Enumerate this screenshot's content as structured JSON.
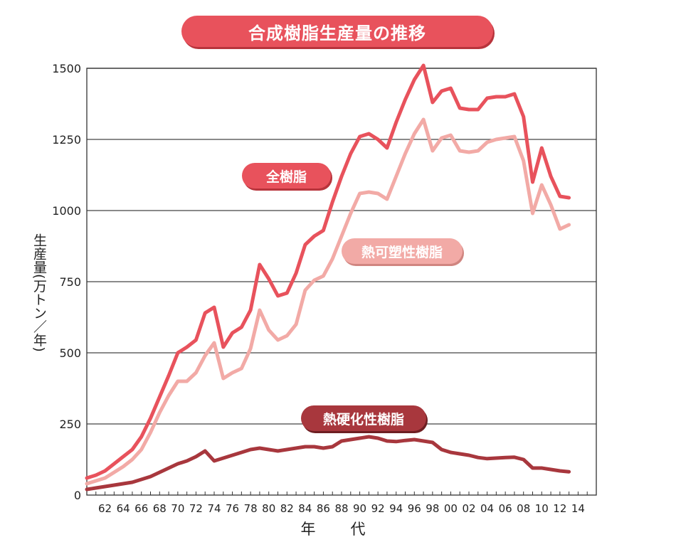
{
  "chart_data": {
    "type": "line",
    "title": "合成樹脂生産量の推移",
    "xlabel": "年　代",
    "ylabel": "生産量(万トン／年)",
    "ylim": [
      0,
      1500
    ],
    "xlim": [
      1960,
      2016
    ],
    "yticks": [
      0,
      250,
      500,
      750,
      1000,
      1250,
      1500
    ],
    "xticks": [
      {
        "year": 1962,
        "label": "62"
      },
      {
        "year": 1964,
        "label": "64"
      },
      {
        "year": 1966,
        "label": "66"
      },
      {
        "year": 1968,
        "label": "68"
      },
      {
        "year": 1970,
        "label": "70"
      },
      {
        "year": 1972,
        "label": "72"
      },
      {
        "year": 1974,
        "label": "74"
      },
      {
        "year": 1976,
        "label": "76"
      },
      {
        "year": 1978,
        "label": "78"
      },
      {
        "year": 1980,
        "label": "80"
      },
      {
        "year": 1982,
        "label": "82"
      },
      {
        "year": 1984,
        "label": "84"
      },
      {
        "year": 1986,
        "label": "86"
      },
      {
        "year": 1988,
        "label": "88"
      },
      {
        "year": 1990,
        "label": "90"
      },
      {
        "year": 1992,
        "label": "92"
      },
      {
        "year": 1994,
        "label": "94"
      },
      {
        "year": 1996,
        "label": "96"
      },
      {
        "year": 1998,
        "label": "98"
      },
      {
        "year": 2000,
        "label": "00"
      },
      {
        "year": 2002,
        "label": "02"
      },
      {
        "year": 2004,
        "label": "04"
      },
      {
        "year": 2006,
        "label": "06"
      },
      {
        "year": 2008,
        "label": "08"
      },
      {
        "year": 2010,
        "label": "10"
      },
      {
        "year": 2012,
        "label": "12"
      },
      {
        "year": 2014,
        "label": "14"
      }
    ],
    "grid": true,
    "series": [
      {
        "name": "全樹脂",
        "color": "#e8525c",
        "x": [
          1960,
          1961,
          1962,
          1963,
          1964,
          1965,
          1966,
          1967,
          1968,
          1969,
          1970,
          1971,
          1972,
          1973,
          1974,
          1975,
          1976,
          1977,
          1978,
          1979,
          1980,
          1981,
          1982,
          1983,
          1984,
          1985,
          1986,
          1987,
          1988,
          1989,
          1990,
          1991,
          1992,
          1993,
          1994,
          1995,
          1996,
          1997,
          1998,
          1999,
          2000,
          2001,
          2002,
          2003,
          2004,
          2005,
          2006,
          2007,
          2008,
          2009,
          2010,
          2011,
          2012,
          2013
        ],
        "values": [
          60,
          70,
          85,
          110,
          135,
          160,
          205,
          270,
          345,
          420,
          500,
          520,
          545,
          640,
          660,
          520,
          570,
          590,
          650,
          810,
          760,
          700,
          710,
          780,
          880,
          910,
          930,
          1030,
          1120,
          1200,
          1260,
          1270,
          1250,
          1220,
          1310,
          1390,
          1460,
          1510,
          1380,
          1420,
          1430,
          1360,
          1355,
          1355,
          1395,
          1400,
          1400,
          1410,
          1330,
          1100,
          1220,
          1120,
          1050,
          1045
        ]
      },
      {
        "name": "熱可塑性樹脂",
        "color": "#f2aaa6",
        "x": [
          1960,
          1961,
          1962,
          1963,
          1964,
          1965,
          1966,
          1967,
          1968,
          1969,
          1970,
          1971,
          1972,
          1973,
          1974,
          1975,
          1976,
          1977,
          1978,
          1979,
          1980,
          1981,
          1982,
          1983,
          1984,
          1985,
          1986,
          1987,
          1988,
          1989,
          1990,
          1991,
          1992,
          1993,
          1994,
          1995,
          1996,
          1997,
          1998,
          1999,
          2000,
          2001,
          2002,
          2003,
          2004,
          2005,
          2006,
          2007,
          2008,
          2009,
          2010,
          2011,
          2012,
          2013
        ],
        "values": [
          40,
          50,
          60,
          80,
          100,
          125,
          160,
          220,
          290,
          350,
          400,
          400,
          430,
          490,
          535,
          410,
          430,
          445,
          515,
          650,
          580,
          545,
          560,
          600,
          720,
          755,
          770,
          830,
          910,
          990,
          1060,
          1065,
          1060,
          1040,
          1120,
          1200,
          1270,
          1320,
          1210,
          1255,
          1265,
          1210,
          1205,
          1210,
          1240,
          1250,
          1255,
          1260,
          1175,
          990,
          1090,
          1020,
          935,
          950
        ]
      },
      {
        "name": "熱硬化性樹脂",
        "color": "#a8373d",
        "x": [
          1960,
          1961,
          1962,
          1963,
          1964,
          1965,
          1966,
          1967,
          1968,
          1969,
          1970,
          1971,
          1972,
          1973,
          1974,
          1975,
          1976,
          1977,
          1978,
          1979,
          1980,
          1981,
          1982,
          1983,
          1984,
          1985,
          1986,
          1987,
          1988,
          1989,
          1990,
          1991,
          1992,
          1993,
          1994,
          1995,
          1996,
          1997,
          1998,
          1999,
          2000,
          2001,
          2002,
          2003,
          2004,
          2005,
          2006,
          2007,
          2008,
          2009,
          2010,
          2011,
          2012,
          2013
        ],
        "values": [
          20,
          25,
          30,
          35,
          40,
          45,
          55,
          65,
          80,
          95,
          110,
          120,
          135,
          155,
          120,
          130,
          140,
          150,
          160,
          165,
          160,
          155,
          160,
          165,
          170,
          170,
          165,
          170,
          190,
          195,
          200,
          205,
          200,
          190,
          188,
          192,
          195,
          190,
          185,
          160,
          150,
          145,
          140,
          132,
          128,
          130,
          132,
          133,
          125,
          95,
          95,
          90,
          85,
          82
        ]
      }
    ]
  }
}
